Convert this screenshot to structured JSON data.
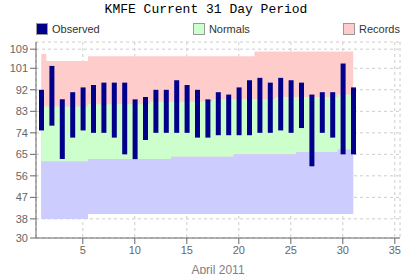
{
  "chart_data": {
    "type": "range_bar",
    "title": "KMFE Current 31 Day Period",
    "x_label": "April 2011",
    "x": [
      1,
      2,
      3,
      4,
      5,
      6,
      7,
      8,
      9,
      10,
      11,
      12,
      13,
      14,
      15,
      16,
      17,
      18,
      19,
      20,
      21,
      22,
      23,
      24,
      25,
      26,
      27,
      28,
      29,
      30,
      31
    ],
    "xlim": [
      0.5,
      35.5
    ],
    "xticks": [
      5,
      10,
      15,
      20,
      25,
      30,
      35
    ],
    "ylim": [
      30,
      112
    ],
    "yticks": [
      30,
      38,
      47,
      56,
      65,
      74,
      83,
      92,
      101,
      109
    ],
    "grid": true,
    "legend": "top",
    "series": [
      {
        "name": "Records",
        "type": "area",
        "color": "#FFCCCC",
        "low": [
          38,
          38,
          38,
          38,
          38,
          40,
          40,
          40,
          40,
          40,
          40,
          40,
          40,
          40,
          40,
          40,
          40,
          40,
          40,
          40,
          40,
          40,
          40,
          40,
          40,
          40,
          40,
          40,
          40,
          40,
          40
        ],
        "high": [
          107,
          104,
          104,
          104,
          104,
          106,
          106,
          106,
          106,
          106,
          106,
          106,
          106,
          106,
          106,
          106,
          106,
          106,
          106,
          106,
          106,
          108,
          108,
          108,
          108,
          108,
          108,
          108,
          108,
          108,
          108
        ]
      },
      {
        "name": "Normals",
        "type": "area",
        "color": "#CCFFCC",
        "low": [
          62,
          62,
          62,
          62,
          62,
          63,
          63,
          63,
          63,
          63,
          63,
          63,
          63,
          64,
          64,
          64,
          64,
          64,
          64,
          65,
          65,
          65,
          65,
          65,
          65,
          66,
          66,
          66,
          66,
          67,
          67
        ],
        "high": [
          85,
          85,
          85,
          85,
          85,
          86,
          86,
          86,
          86,
          86,
          86,
          87,
          87,
          87,
          87,
          87,
          87,
          88,
          88,
          88,
          88,
          88,
          88,
          89,
          89,
          89,
          89,
          89,
          89,
          90,
          90
        ]
      },
      {
        "type": "area",
        "color": "#CCCCFF",
        "low": [
          38,
          38,
          38,
          38,
          38,
          40,
          40,
          40,
          40,
          40,
          40,
          40,
          40,
          40,
          40,
          40,
          40,
          40,
          40,
          40,
          40,
          40,
          40,
          40,
          40,
          40,
          40,
          40,
          40,
          40,
          40
        ],
        "high": [
          62,
          62,
          62,
          62,
          62,
          63,
          63,
          63,
          63,
          63,
          63,
          63,
          63,
          64,
          64,
          64,
          64,
          64,
          64,
          65,
          65,
          65,
          65,
          65,
          65,
          66,
          66,
          66,
          66,
          67,
          67
        ]
      },
      {
        "name": "Observed",
        "type": "bar",
        "color": "#00008B",
        "low": [
          75,
          77,
          63,
          72,
          75,
          74,
          74,
          72,
          65,
          63,
          71,
          74,
          74,
          74,
          74,
          72,
          72,
          73,
          73,
          73,
          73,
          74,
          74,
          75,
          74,
          76,
          60,
          74,
          72,
          65,
          65
        ],
        "high": [
          92,
          102,
          88,
          91,
          93,
          94,
          95,
          95,
          95,
          88,
          89,
          92,
          92,
          96,
          94,
          92,
          88,
          91,
          90,
          93,
          96,
          97,
          95,
          97,
          96,
          95,
          90,
          91,
          91,
          103,
          93
        ]
      }
    ]
  }
}
